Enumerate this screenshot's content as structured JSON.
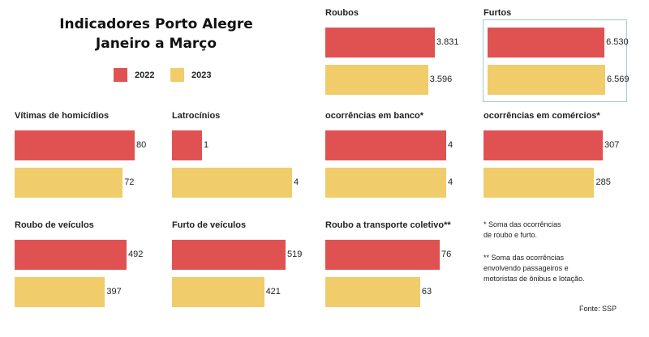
{
  "title_line1": "Indicadores Porto Alegre",
  "title_line2": "Janeiro a Março",
  "legend": [
    {
      "label": "2022",
      "color": "#e05252"
    },
    {
      "label": "2023",
      "color": "#f0cd6a"
    }
  ],
  "chart_data": {
    "type": "bar",
    "title": "Indicadores Porto Alegre - Janeiro a Março",
    "series_names": [
      "2022",
      "2023"
    ],
    "panels": [
      {
        "name": "Roubos",
        "values": [
          3831,
          3596
        ],
        "labels": [
          "3.831",
          "3.596"
        ]
      },
      {
        "name": "Furtos",
        "values": [
          6530,
          6569
        ],
        "labels": [
          "6.530",
          "6.569"
        ]
      },
      {
        "name": "Vítimas de homicídios",
        "values": [
          80,
          72
        ],
        "labels": [
          "80",
          "72"
        ]
      },
      {
        "name": "Latrocínios",
        "values": [
          1,
          4
        ],
        "labels": [
          "1",
          "4"
        ]
      },
      {
        "name": "ocorrências em banco*",
        "values": [
          4,
          4
        ],
        "labels": [
          "4",
          "4"
        ]
      },
      {
        "name": "ocorrências em comércios*",
        "values": [
          307,
          285
        ],
        "labels": [
          "307",
          "285"
        ]
      },
      {
        "name": "Roubo de veículos",
        "values": [
          492,
          397
        ],
        "labels": [
          "492",
          "397"
        ]
      },
      {
        "name": "Furto de veículos",
        "values": [
          519,
          421
        ],
        "labels": [
          "519",
          "421"
        ]
      },
      {
        "name": "Roubo a transporte coletivo**",
        "values": [
          76,
          63
        ],
        "labels": [
          "76",
          "63"
        ]
      }
    ]
  },
  "notes": {
    "n1_l1": "* Soma das ocorrências",
    "n1_l2": "de roubo e furto.",
    "n2_l1": "** Soma das ocorrências",
    "n2_l2": "envolvendo passageiros e",
    "n2_l3": "motoristas de ônibus e lotação.",
    "source": "Fonte: SSP"
  }
}
